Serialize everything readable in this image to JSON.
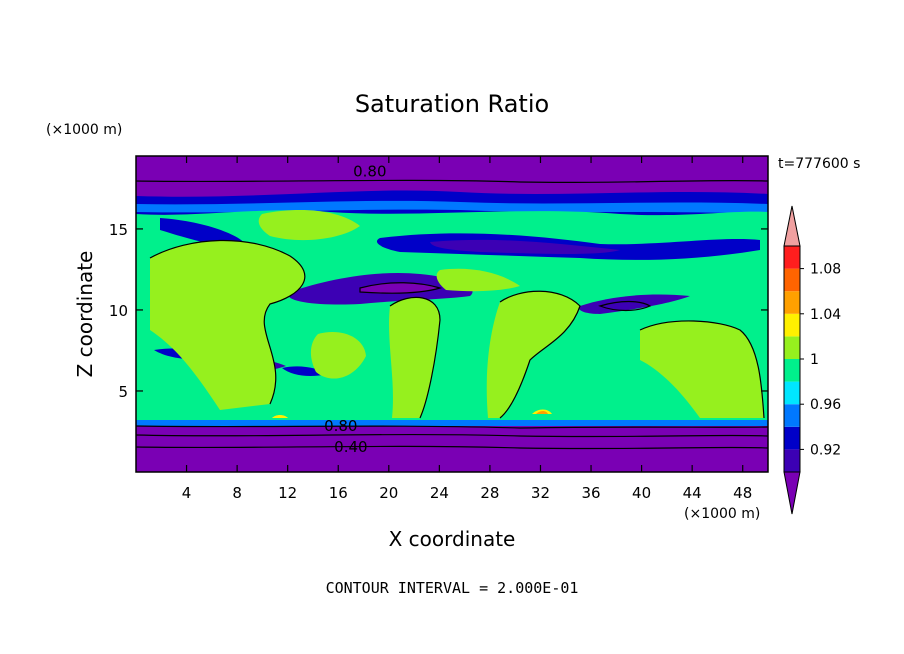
{
  "chart_data": {
    "type": "heatmap",
    "title": "Saturation Ratio",
    "xlabel": "X coordinate",
    "ylabel": "Z coordinate",
    "x_units": "(×1000 m)",
    "y_units": "(×1000 m)",
    "time_label": "t=777600 s",
    "footer": "CONTOUR INTERVAL = 2.000E-01",
    "xlim": [
      0,
      50
    ],
    "ylim": [
      0,
      19.5
    ],
    "x_ticks": [
      4,
      8,
      12,
      16,
      20,
      24,
      28,
      32,
      36,
      40,
      44,
      48
    ],
    "y_ticks": [
      5,
      10,
      15
    ],
    "colorbar": {
      "levels": [
        0.9,
        0.92,
        0.94,
        0.96,
        0.98,
        1.0,
        1.02,
        1.04,
        1.06,
        1.08,
        1.1
      ],
      "colors": [
        "#7a00b4",
        "#3c00b4",
        "#0000c8",
        "#0078ff",
        "#00e6ff",
        "#00f08c",
        "#96f01e",
        "#fff000",
        "#ffa000",
        "#ff6400",
        "#ff1e1e",
        "#f0a0a0"
      ],
      "labels": [
        "0.92",
        "0.96",
        "1",
        "1.04",
        "1.08"
      ],
      "label_values": [
        0.92,
        0.96,
        1.0,
        1.04,
        1.08
      ]
    },
    "contour_labels": [
      {
        "text": "0.80",
        "x": 18.5,
        "z": 18.6
      },
      {
        "text": "0.80",
        "x": 16.2,
        "z": 2.9
      },
      {
        "text": "0.40",
        "x": 17.0,
        "z": 1.6
      }
    ]
  }
}
